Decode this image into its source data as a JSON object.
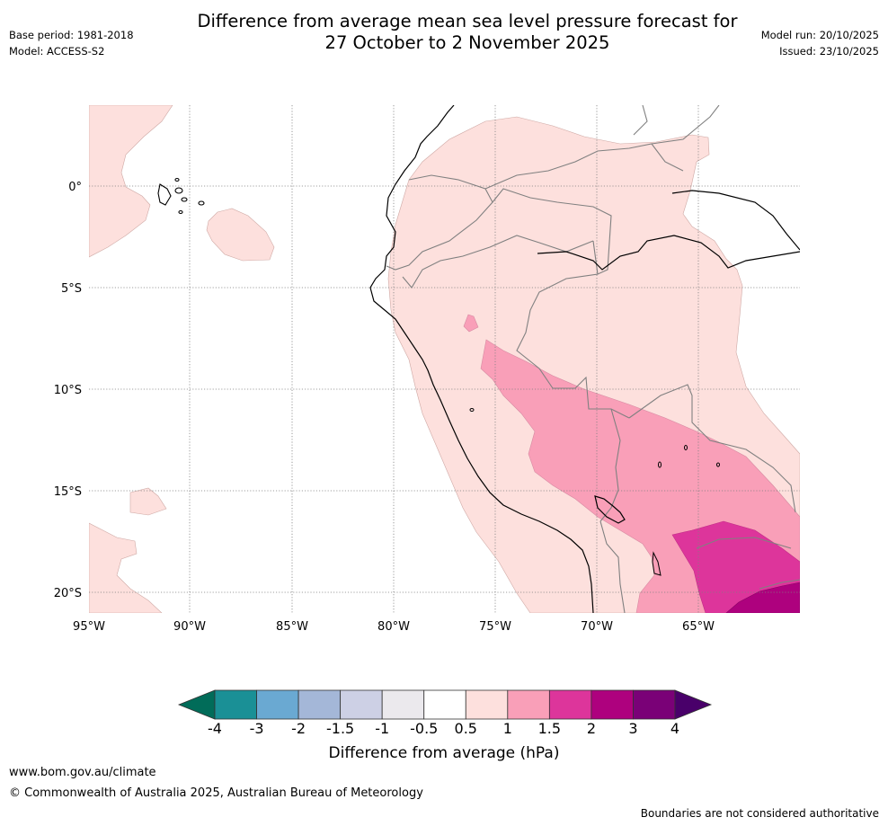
{
  "header": {
    "title_line1": "Difference from average mean sea level pressure forecast for",
    "title_line2": "27 October to 2 November 2025",
    "base_period": "Base period: 1981-2018",
    "model": "Model: ACCESS-S2",
    "model_run": "Model run: 20/10/2025",
    "issued": "Issued: 23/10/2025"
  },
  "map": {
    "lon_labels": [
      "95°W",
      "90°W",
      "85°W",
      "80°W",
      "75°W",
      "70°W",
      "65°W"
    ],
    "lat_labels": [
      "0°",
      "5°S",
      "10°S",
      "15°S",
      "20°S"
    ],
    "colors": {
      "land_boundary": "#000000",
      "border": "#808080",
      "grid": "#808080"
    }
  },
  "colorbar": {
    "title": "Difference from average (hPa)",
    "tick_labels": [
      "-4",
      "-3",
      "-2",
      "-1.5",
      "-1",
      "-0.5",
      "0.5",
      "1",
      "1.5",
      "2",
      "3",
      "4"
    ],
    "colors": [
      "#1a9096",
      "#6aa9d2",
      "#a4b7d8",
      "#cdd0e5",
      "#ebe9ed",
      "#ffffff",
      "#fde0dd",
      "#f99fb8",
      "#dd359b",
      "#ae017e",
      "#7a0177"
    ],
    "under_color": "#016c59",
    "over_color": "#49006a"
  },
  "footer": {
    "url": "www.bom.gov.au/climate",
    "copyright": "© Commonwealth of Australia 2025, Australian Bureau of Meteorology",
    "disclaimer": "Boundaries are not considered authoritative"
  }
}
